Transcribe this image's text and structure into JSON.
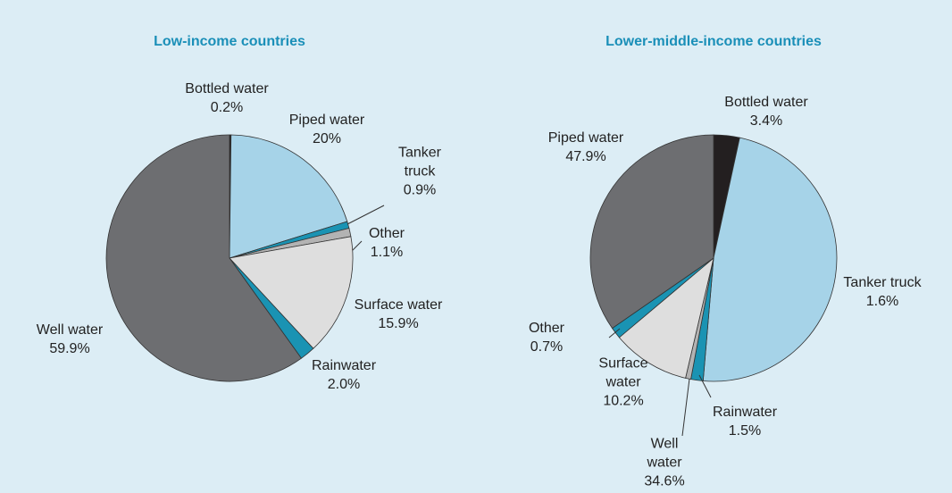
{
  "chart_data": [
    {
      "type": "pie",
      "title": "Low-income countries",
      "categories": [
        "Bottled water",
        "Piped water",
        "Tanker truck",
        "Other",
        "Surface water",
        "Rainwater",
        "Well water"
      ],
      "values": [
        0.2,
        20,
        0.9,
        1.1,
        15.9,
        2.0,
        59.9
      ],
      "value_labels": [
        "0.2%",
        "20%",
        "0.9%",
        "1.1%",
        "15.9%",
        "2.0%",
        "59.9%"
      ],
      "colors": [
        "#231f20",
        "#a6d3e8",
        "#1a93b3",
        "#b3b3b3",
        "#dedede",
        "#1a93b3",
        "#6d6e71"
      ]
    },
    {
      "type": "pie",
      "title": "Lower-middle-income countries",
      "categories": [
        "Bottled water",
        "Piped water",
        "Tanker truck",
        "Other",
        "Surface water",
        "Rainwater",
        "Well water"
      ],
      "values": [
        3.4,
        47.9,
        1.6,
        0.7,
        10.2,
        1.5,
        34.6
      ],
      "value_labels": [
        "3.4%",
        "47.9%",
        "1.6%",
        "0.7%",
        "10.2%",
        "1.5%",
        "34.6%"
      ],
      "colors": [
        "#231f20",
        "#a6d3e8",
        "#1a93b3",
        "#b3b3b3",
        "#dedede",
        "#1a93b3",
        "#6d6e71"
      ]
    }
  ]
}
